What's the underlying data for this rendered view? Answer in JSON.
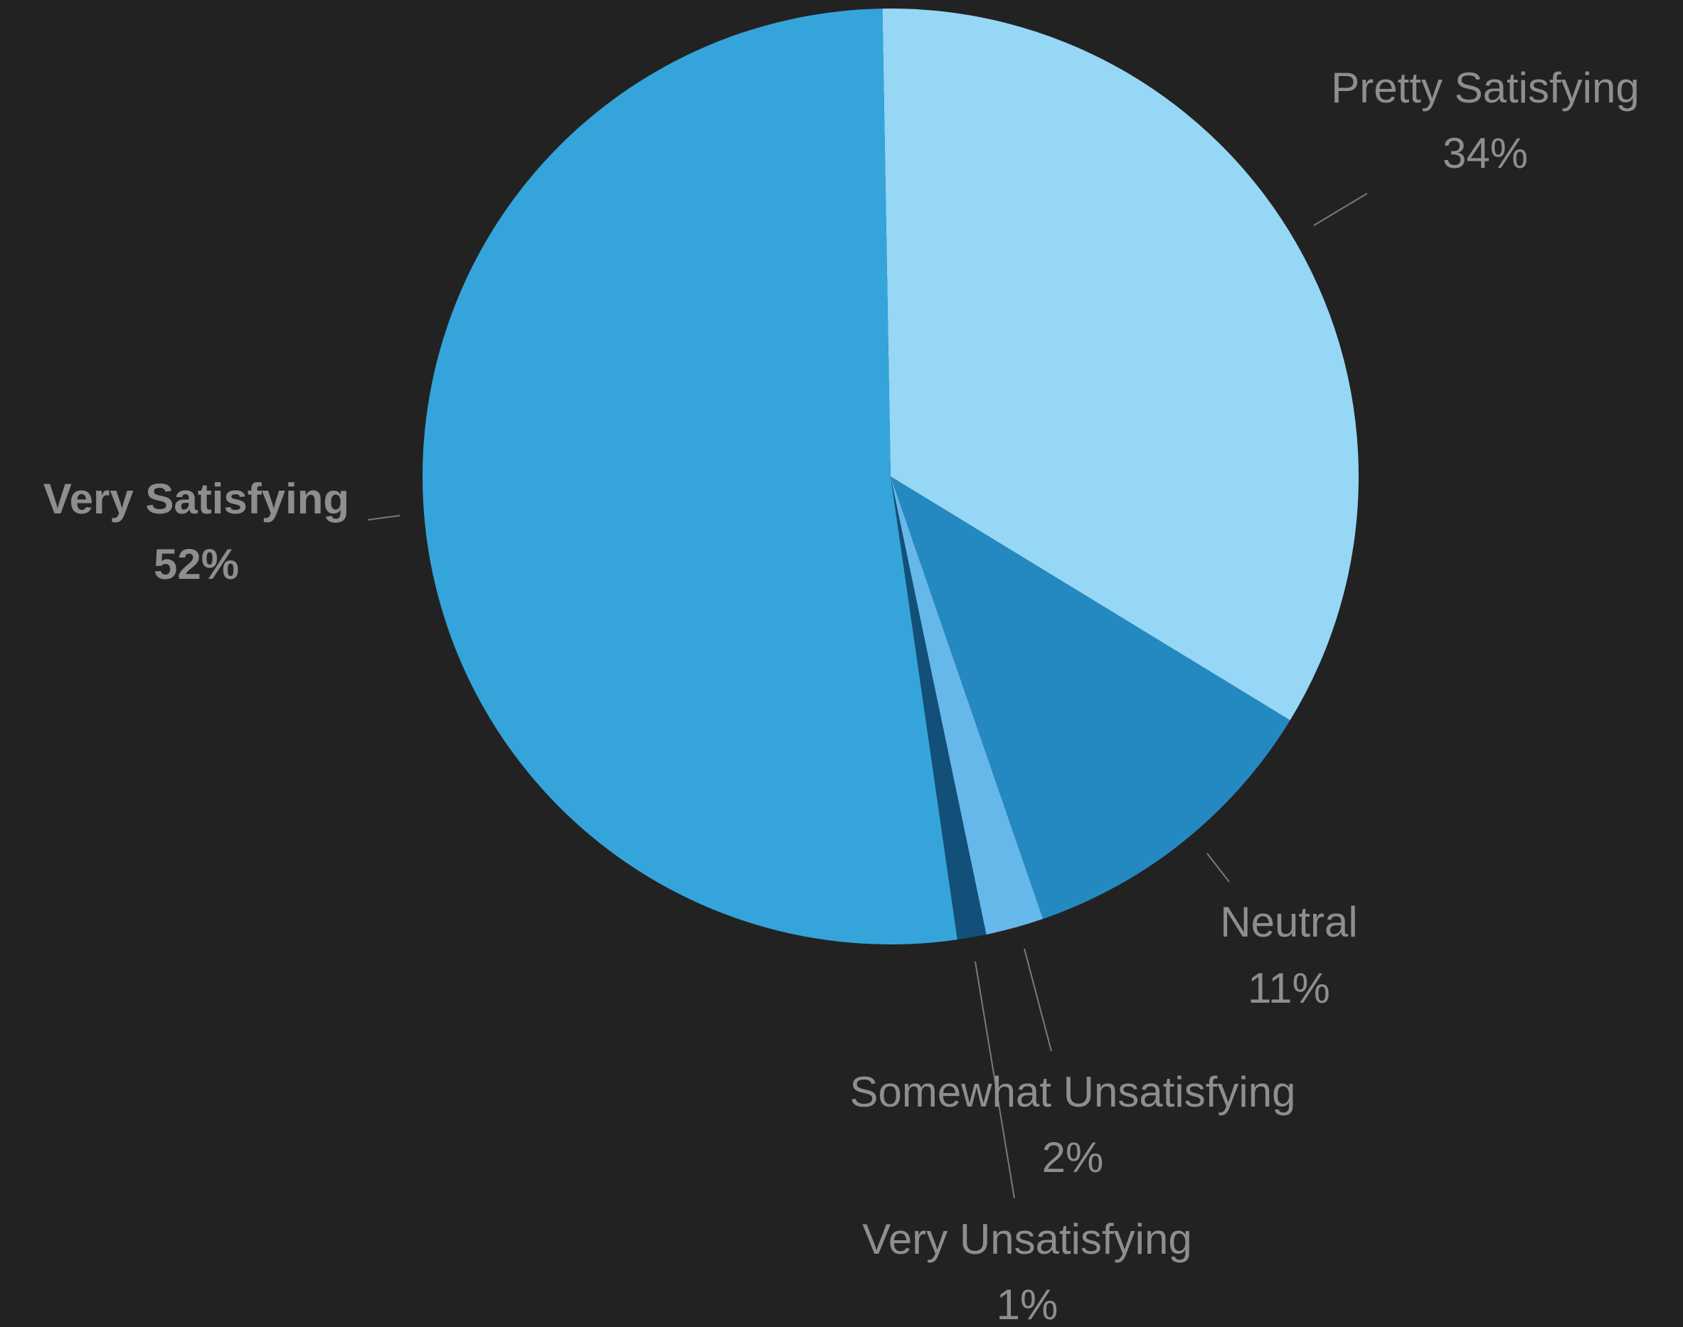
{
  "background": "#222222",
  "chart_data": {
    "type": "pie",
    "title": "",
    "slices": [
      {
        "label": "Pretty Satisfying",
        "value": 34,
        "value_label": "34%",
        "color": "#95D7F5",
        "highlight": false
      },
      {
        "label": "Neutral",
        "value": 11,
        "value_label": "11%",
        "color": "#2489C1",
        "highlight": false
      },
      {
        "label": "Somewhat Unsatisfying",
        "value": 2,
        "value_label": "2%",
        "color": "#67B8EA",
        "highlight": false
      },
      {
        "label": "Very Unsatisfying",
        "value": 1,
        "value_label": "1%",
        "color": "#125079",
        "highlight": false
      },
      {
        "label": "Very Satisfying",
        "value": 52,
        "value_label": "52%",
        "color": "#35A4DB",
        "highlight": true
      }
    ],
    "start_angle_deg": -1,
    "direction": "clockwise",
    "label_color": "#8E8E8E",
    "leader_color": "#7A7A7A"
  }
}
